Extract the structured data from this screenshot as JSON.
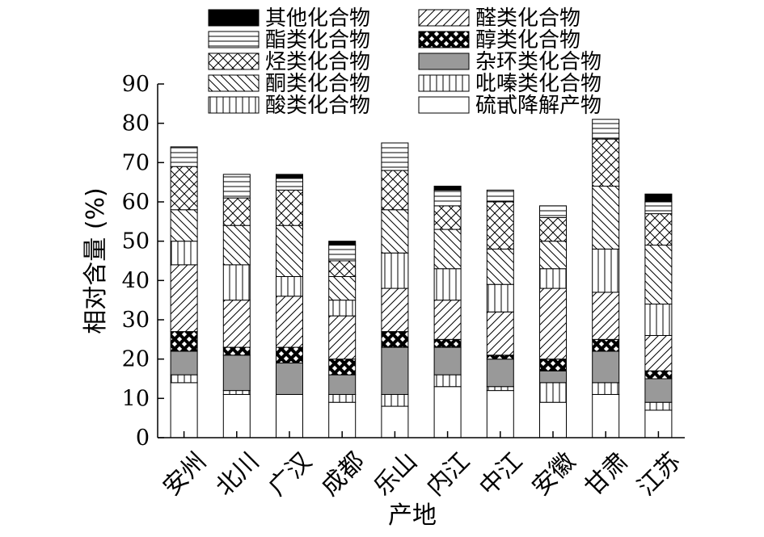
{
  "chart_data": {
    "type": "bar",
    "stacked": true,
    "xlabel": "产地",
    "ylabel": "相对含量 (%)",
    "ylim": [
      0,
      90
    ],
    "yticks": [
      0,
      10,
      20,
      30,
      40,
      50,
      60,
      70,
      80,
      90
    ],
    "grid": false,
    "legend_position": "top",
    "categories": [
      "安州",
      "北川",
      "广汉",
      "成都",
      "乐山",
      "内江",
      "中江",
      "安徽",
      "甘肃",
      "江苏"
    ],
    "series": [
      {
        "name": "硫甙降解产物",
        "pattern": "white",
        "values": [
          14,
          11,
          11,
          9,
          8,
          13,
          12,
          9,
          11,
          7
        ]
      },
      {
        "name": "吡嗪类化合物",
        "pattern": "vertical",
        "values": [
          2,
          1,
          0,
          2,
          3,
          3,
          1,
          5,
          3,
          2
        ]
      },
      {
        "name": "杂环类化合物",
        "pattern": "gray",
        "values": [
          6,
          9,
          8,
          5,
          12,
          7,
          7,
          3,
          8,
          6
        ]
      },
      {
        "name": "醇类化合物",
        "pattern": "xblack",
        "values": [
          5,
          2,
          4,
          4,
          4,
          2,
          1,
          3,
          3,
          2
        ]
      },
      {
        "name": "醛类化合物",
        "pattern": "slash",
        "values": [
          17,
          12,
          13,
          11,
          11,
          10,
          11,
          18,
          12,
          9
        ]
      },
      {
        "name": "酸类化合物",
        "pattern": "vertical",
        "values": [
          6,
          9,
          5,
          4,
          9,
          8,
          7,
          5,
          11,
          8
        ]
      },
      {
        "name": "酮类化合物",
        "pattern": "backslash",
        "values": [
          8,
          10,
          13,
          6,
          11,
          10,
          9,
          7,
          16,
          15
        ]
      },
      {
        "name": "烃类化合物",
        "pattern": "xhatch",
        "values": [
          11,
          7,
          9,
          4,
          10,
          6,
          12,
          6,
          12,
          8
        ]
      },
      {
        "name": "酯类化合物",
        "pattern": "horizontal",
        "values": [
          5,
          6,
          3,
          4,
          7,
          4,
          3,
          3,
          5,
          3
        ]
      },
      {
        "name": "其他化合物",
        "pattern": "black",
        "values": [
          0,
          0,
          1,
          1,
          0,
          1,
          0,
          0,
          0,
          2
        ]
      }
    ],
    "legend": [
      {
        "name": "其他化合物",
        "pattern": "black"
      },
      {
        "name": "酯类化合物",
        "pattern": "horizontal"
      },
      {
        "name": "烃类化合物",
        "pattern": "xhatch"
      },
      {
        "name": "酮类化合物",
        "pattern": "backslash"
      },
      {
        "name": "酸类化合物",
        "pattern": "vertical"
      },
      {
        "name": "醛类化合物",
        "pattern": "slash"
      },
      {
        "name": "醇类化合物",
        "pattern": "xblack"
      },
      {
        "name": "杂环类化合物",
        "pattern": "gray"
      },
      {
        "name": "吡嗪类化合物",
        "pattern": "vertical"
      },
      {
        "name": "硫甙降解产物",
        "pattern": "white"
      }
    ],
    "colors": {
      "axis": "#000000",
      "gray_fill": "#999999",
      "black_fill": "#000000"
    }
  }
}
